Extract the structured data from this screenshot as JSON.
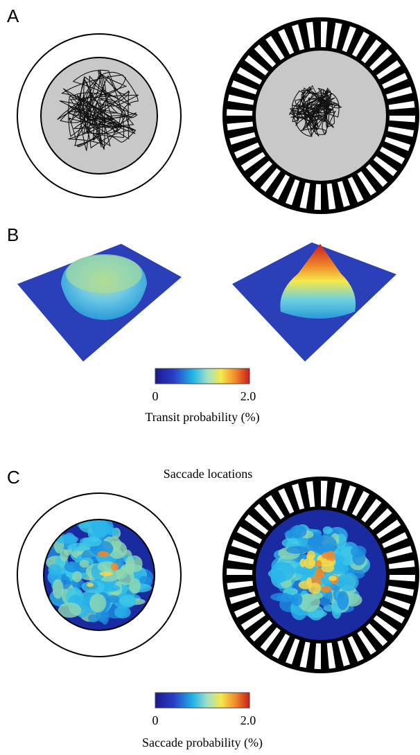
{
  "panel_a": {
    "label": "A"
  },
  "panel_b": {
    "label": "B",
    "colorbar": {
      "min_label": "0",
      "max_label": "2.0",
      "title": "Transit probability (%)"
    }
  },
  "panel_c": {
    "label": "C",
    "title": "Saccade locations",
    "colorbar": {
      "min_label": "0",
      "max_label": "2.0",
      "title": "Saccade probability (%)"
    }
  }
}
